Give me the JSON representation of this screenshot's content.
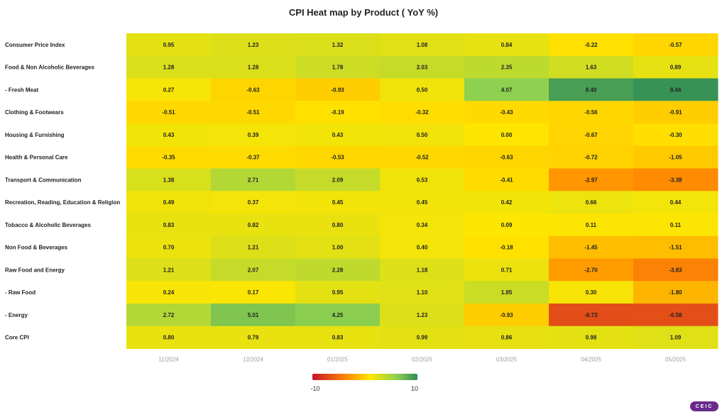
{
  "chart_data": {
    "type": "heatmap",
    "title": "CPI Heat map by Product ( YoY %)",
    "x": [
      "11/2024",
      "12/2024",
      "01/2025",
      "02/2025",
      "03/2025",
      "04/2025",
      "05/2025"
    ],
    "rows": [
      {
        "label": "Consumer Price Index",
        "values": [
          0.95,
          1.23,
          1.32,
          1.08,
          0.84,
          -0.22,
          -0.57
        ]
      },
      {
        "label": "Food & Non Alcoholic Beverages",
        "values": [
          1.28,
          1.28,
          1.78,
          2.03,
          2.35,
          1.63,
          0.89
        ]
      },
      {
        "label": "- Fresh Meat",
        "values": [
          0.27,
          -0.63,
          -0.93,
          0.5,
          4.07,
          8.4,
          9.44
        ]
      },
      {
        "label": "Clothing & Footwears",
        "values": [
          -0.51,
          -0.51,
          -0.19,
          -0.32,
          -0.43,
          -0.56,
          -0.91
        ]
      },
      {
        "label": "Housing & Furnishing",
        "values": [
          0.43,
          0.39,
          0.43,
          0.5,
          0.0,
          -0.67,
          -0.3
        ]
      },
      {
        "label": "Health & Personal Care",
        "values": [
          -0.35,
          -0.37,
          -0.53,
          -0.52,
          -0.63,
          -0.72,
          -1.05
        ]
      },
      {
        "label": "Transport & Communication",
        "values": [
          1.38,
          2.71,
          2.09,
          0.53,
          -0.41,
          -2.97,
          -3.38
        ]
      },
      {
        "label": "Recreation, Reading, Education & Religion",
        "values": [
          0.49,
          0.37,
          0.45,
          0.45,
          0.42,
          0.66,
          0.44
        ]
      },
      {
        "label": "Tobacco & Alcoholic Beverages",
        "values": [
          0.83,
          0.82,
          0.8,
          0.34,
          0.09,
          0.11,
          0.11
        ]
      },
      {
        "label": "Non Food & Beverages",
        "values": [
          0.7,
          1.21,
          1.0,
          0.4,
          -0.18,
          -1.45,
          -1.51
        ]
      },
      {
        "label": "Raw Food and Energy",
        "values": [
          1.21,
          2.07,
          2.28,
          1.18,
          0.71,
          -2.7,
          -3.83
        ]
      },
      {
        "label": "- Raw Food",
        "values": [
          0.24,
          0.17,
          0.95,
          1.1,
          1.85,
          0.3,
          -1.8
        ]
      },
      {
        "label": "- Energy",
        "values": [
          2.72,
          5.01,
          4.25,
          1.23,
          -0.93,
          -6.73,
          -6.58
        ]
      },
      {
        "label": "Core CPI",
        "values": [
          0.8,
          0.79,
          0.83,
          0.99,
          0.86,
          0.98,
          1.09
        ]
      }
    ],
    "color_scale": {
      "min": -10,
      "max": 10,
      "min_label": "-10",
      "max_label": "10",
      "stops": [
        "#c8102e",
        "#ff8c00",
        "#ffe600",
        "#8fd14f",
        "#2e8b57"
      ]
    }
  },
  "branding": {
    "logo_text": "CEIC",
    "logo_color": "#6a2a8c"
  }
}
